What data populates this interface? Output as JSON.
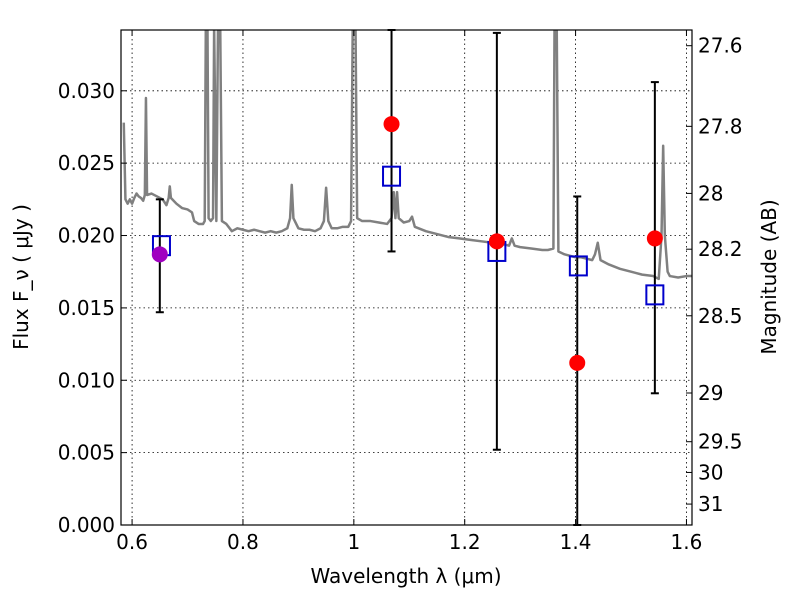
{
  "chart_data": {
    "type": "scatter",
    "xlabel": "Wavelength  λ (μm)",
    "ylabel": "Flux  F_ν  ( μJy )",
    "ylabel_right": "Magnitude (AB)",
    "xlim": [
      0.58,
      1.61
    ],
    "ylim": [
      0.0,
      0.0342
    ],
    "grid": true,
    "x_ticks": [
      0.6,
      0.8,
      1.0,
      1.2,
      1.4,
      1.6
    ],
    "x_tick_labels": [
      "0.6",
      "0.8",
      "1",
      "1.2",
      "1.4",
      "1.6"
    ],
    "y_ticks": [
      0.0,
      0.005,
      0.01,
      0.015,
      0.02,
      0.025,
      0.03
    ],
    "y_tick_labels": [
      "0.000",
      "0.005",
      "0.010",
      "0.015",
      "0.020",
      "0.025",
      "0.030"
    ],
    "right_ticks": [
      {
        "label": "27.6",
        "value": 27.6
      },
      {
        "label": "27.8",
        "value": 27.8
      },
      {
        "label": "28",
        "value": 28.0
      },
      {
        "label": "28.2",
        "value": 28.2
      },
      {
        "label": "28.5",
        "value": 28.5
      },
      {
        "label": "29",
        "value": 29.0
      },
      {
        "label": "29.5",
        "value": 29.5
      },
      {
        "label": "30",
        "value": 30.0
      },
      {
        "label": "31",
        "value": 31.0
      }
    ],
    "colors": {
      "spectrum": "#808080",
      "observed": "#ff0000",
      "model": "#0000cc",
      "special": "#a000c0",
      "errorbar": "#000000"
    },
    "spectrum": [
      [
        0.585,
        0.0278
      ],
      [
        0.588,
        0.0225
      ],
      [
        0.592,
        0.0222
      ],
      [
        0.596,
        0.0225
      ],
      [
        0.6,
        0.0222
      ],
      [
        0.604,
        0.0226
      ],
      [
        0.608,
        0.0229
      ],
      [
        0.612,
        0.0227
      ],
      [
        0.616,
        0.0226
      ],
      [
        0.62,
        0.0224
      ],
      [
        0.623,
        0.0228
      ],
      [
        0.625,
        0.0295
      ],
      [
        0.627,
        0.0228
      ],
      [
        0.635,
        0.0229
      ],
      [
        0.645,
        0.0227
      ],
      [
        0.655,
        0.0225
      ],
      [
        0.662,
        0.0221
      ],
      [
        0.666,
        0.0226
      ],
      [
        0.668,
        0.0234
      ],
      [
        0.67,
        0.0226
      ],
      [
        0.68,
        0.0222
      ],
      [
        0.69,
        0.0219
      ],
      [
        0.7,
        0.0218
      ],
      [
        0.708,
        0.0216
      ],
      [
        0.712,
        0.021
      ],
      [
        0.72,
        0.0208
      ],
      [
        0.728,
        0.0208
      ],
      [
        0.731,
        0.021
      ],
      [
        0.733,
        0.0345
      ],
      [
        0.736,
        0.0345
      ],
      [
        0.738,
        0.0212
      ],
      [
        0.742,
        0.021
      ],
      [
        0.746,
        0.0212
      ],
      [
        0.748,
        0.0345
      ],
      [
        0.752,
        0.021
      ],
      [
        0.755,
        0.0345
      ],
      [
        0.759,
        0.0345
      ],
      [
        0.762,
        0.021
      ],
      [
        0.77,
        0.0208
      ],
      [
        0.78,
        0.0203
      ],
      [
        0.79,
        0.0205
      ],
      [
        0.8,
        0.0204
      ],
      [
        0.81,
        0.0203
      ],
      [
        0.82,
        0.0204
      ],
      [
        0.83,
        0.0203
      ],
      [
        0.84,
        0.0202
      ],
      [
        0.85,
        0.0203
      ],
      [
        0.86,
        0.0202
      ],
      [
        0.87,
        0.0203
      ],
      [
        0.88,
        0.0205
      ],
      [
        0.885,
        0.0212
      ],
      [
        0.888,
        0.0235
      ],
      [
        0.891,
        0.0212
      ],
      [
        0.9,
        0.0205
      ],
      [
        0.91,
        0.0204
      ],
      [
        0.92,
        0.0204
      ],
      [
        0.93,
        0.0203
      ],
      [
        0.94,
        0.0205
      ],
      [
        0.946,
        0.021
      ],
      [
        0.95,
        0.0233
      ],
      [
        0.954,
        0.021
      ],
      [
        0.96,
        0.0205
      ],
      [
        0.97,
        0.0205
      ],
      [
        0.98,
        0.0206
      ],
      [
        0.99,
        0.0206
      ],
      [
        0.995,
        0.021
      ],
      [
        0.998,
        0.0345
      ],
      [
        1.003,
        0.0345
      ],
      [
        1.006,
        0.0212
      ],
      [
        1.015,
        0.021
      ],
      [
        1.03,
        0.021
      ],
      [
        1.045,
        0.0209
      ],
      [
        1.06,
        0.0208
      ],
      [
        1.068,
        0.0212
      ],
      [
        1.072,
        0.023
      ],
      [
        1.075,
        0.0212
      ],
      [
        1.078,
        0.023
      ],
      [
        1.081,
        0.0212
      ],
      [
        1.09,
        0.0209
      ],
      [
        1.1,
        0.021
      ],
      [
        1.105,
        0.0213
      ],
      [
        1.11,
        0.0206
      ],
      [
        1.13,
        0.0203
      ],
      [
        1.15,
        0.0201
      ],
      [
        1.17,
        0.0199
      ],
      [
        1.19,
        0.0198
      ],
      [
        1.21,
        0.0197
      ],
      [
        1.23,
        0.0196
      ],
      [
        1.25,
        0.0195
      ],
      [
        1.27,
        0.0194
      ],
      [
        1.28,
        0.0193
      ],
      [
        1.285,
        0.0198
      ],
      [
        1.29,
        0.0193
      ],
      [
        1.3,
        0.0192
      ],
      [
        1.32,
        0.0191
      ],
      [
        1.34,
        0.019
      ],
      [
        1.35,
        0.019
      ],
      [
        1.36,
        0.0191
      ],
      [
        1.362,
        0.0345
      ],
      [
        1.366,
        0.0345
      ],
      [
        1.369,
        0.0189
      ],
      [
        1.38,
        0.0187
      ],
      [
        1.39,
        0.0186
      ],
      [
        1.4,
        0.0185
      ],
      [
        1.41,
        0.0185
      ],
      [
        1.42,
        0.0184
      ],
      [
        1.43,
        0.0183
      ],
      [
        1.435,
        0.0187
      ],
      [
        1.44,
        0.0195
      ],
      [
        1.445,
        0.0183
      ],
      [
        1.46,
        0.018
      ],
      [
        1.48,
        0.0177
      ],
      [
        1.5,
        0.0175
      ],
      [
        1.52,
        0.0173
      ],
      [
        1.54,
        0.0172
      ],
      [
        1.55,
        0.017
      ],
      [
        1.555,
        0.02
      ],
      [
        1.558,
        0.0262
      ],
      [
        1.561,
        0.02
      ],
      [
        1.566,
        0.0175
      ],
      [
        1.57,
        0.0172
      ],
      [
        1.585,
        0.0171
      ],
      [
        1.6,
        0.0172
      ],
      [
        1.61,
        0.0172
      ]
    ],
    "observed_points": [
      {
        "x": 0.65,
        "y": 0.0187,
        "yerr_low": 0.0147,
        "yerr_high": 0.0225,
        "marker": "special"
      },
      {
        "x": 1.068,
        "y": 0.0277,
        "yerr_low": 0.0189,
        "yerr_high": 0.0342
      },
      {
        "x": 1.258,
        "y": 0.0196,
        "yerr_low": 0.0052,
        "yerr_high": 0.034
      },
      {
        "x": 1.403,
        "y": 0.0112,
        "yerr_low": 0.0,
        "yerr_high": 0.0227
      },
      {
        "x": 1.543,
        "y": 0.0198,
        "yerr_low": 0.0091,
        "yerr_high": 0.0306
      }
    ],
    "model_points": [
      {
        "x": 0.653,
        "y": 0.0193
      },
      {
        "x": 1.068,
        "y": 0.0241
      },
      {
        "x": 1.258,
        "y": 0.0189
      },
      {
        "x": 1.405,
        "y": 0.0179
      },
      {
        "x": 1.543,
        "y": 0.0159
      }
    ]
  }
}
